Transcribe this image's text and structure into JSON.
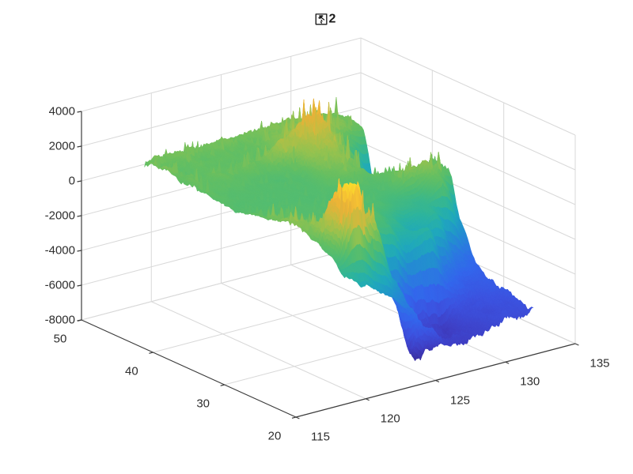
{
  "window": {
    "background": "#ffffff"
  },
  "chart_data": {
    "type": "surface",
    "title": "图2",
    "title_number": "2",
    "x_axis": {
      "ticks": [
        115,
        120,
        125,
        130,
        135
      ],
      "range": [
        115,
        135
      ]
    },
    "y_axis": {
      "ticks": [
        20,
        30,
        40,
        50
      ],
      "range": [
        20,
        50
      ]
    },
    "z_axis": {
      "ticks": [
        -8000,
        -6000,
        -4000,
        -2000,
        0,
        2000,
        4000
      ],
      "range": [
        -8000,
        4000
      ]
    },
    "view": {
      "azimuth": -37.5,
      "elevation": 30
    },
    "grid_visible": true,
    "surface_extent": {
      "x": [
        119,
        132.5
      ],
      "y": [
        21,
        49
      ]
    },
    "grid_x": [
      119,
      120.5,
      122,
      123.5,
      125,
      126.5,
      128,
      129.5,
      131,
      132.5
    ],
    "grid_y": [
      49,
      47,
      45,
      43,
      41,
      39,
      37,
      35,
      33,
      31,
      29,
      27,
      25,
      23,
      21
    ],
    "z_grid": [
      [
        700,
        550,
        400,
        350,
        400,
        500,
        650,
        800,
        750,
        600
      ],
      [
        450,
        300,
        200,
        180,
        250,
        350,
        500,
        700,
        600,
        400
      ],
      [
        350,
        250,
        150,
        120,
        200,
        450,
        700,
        850,
        500,
        300
      ],
      [
        500,
        300,
        200,
        300,
        600,
        1200,
        1900,
        900,
        -800,
        -2800
      ],
      [
        300,
        150,
        50,
        -20,
        200,
        800,
        1400,
        300,
        -2600,
        -3400
      ],
      [
        100,
        -15,
        -30,
        -25,
        50,
        600,
        1000,
        -800,
        -2900,
        -3300
      ],
      [
        50,
        -25,
        -50,
        -60,
        -40,
        300,
        700,
        -1200,
        -2300,
        -2700
      ],
      [
        80,
        -30,
        -60,
        -75,
        -85,
        -70,
        150,
        250,
        -900,
        300
      ],
      [
        250,
        60,
        -40,
        -70,
        -90,
        -110,
        -140,
        400,
        900,
        500
      ],
      [
        400,
        150,
        -30,
        -60,
        -90,
        -130,
        -600,
        -900,
        300,
        -2600
      ],
      [
        700,
        300,
        -50,
        -80,
        -120,
        -700,
        -1900,
        -1000,
        -3800,
        -4400
      ],
      [
        900,
        400,
        100,
        -60,
        -500,
        -1800,
        -1100,
        -4600,
        -5300,
        -5200
      ],
      [
        500,
        2000,
        300,
        -2200,
        -5000,
        -6300,
        -6500,
        -6000,
        -5600,
        -5300
      ],
      [
        -80,
        3300,
        1200,
        -2500,
        -7500,
        -7000,
        -6300,
        -6000,
        -5700,
        -5400
      ],
      [
        -900,
        -1800,
        -2600,
        -3600,
        -5200,
        -6200,
        -6400,
        -6000,
        -5800,
        -5500
      ]
    ],
    "colormap": [
      [
        0.0,
        "#3a2d9c"
      ],
      [
        0.08,
        "#3f3fc4"
      ],
      [
        0.17,
        "#3c53e0"
      ],
      [
        0.26,
        "#3366ec"
      ],
      [
        0.34,
        "#2b7ae0"
      ],
      [
        0.42,
        "#2292cd"
      ],
      [
        0.5,
        "#20a9bb"
      ],
      [
        0.57,
        "#2db49e"
      ],
      [
        0.64,
        "#49bb79"
      ],
      [
        0.7,
        "#65bf62"
      ],
      [
        0.76,
        "#96c24f"
      ],
      [
        0.82,
        "#c3bd41"
      ],
      [
        0.88,
        "#e9b138"
      ],
      [
        0.94,
        "#f6c233"
      ],
      [
        1.0,
        "#fbdc2b"
      ]
    ],
    "colors": {
      "axis": "#3c3c3c",
      "grid": "#d9d9d9",
      "text": "#2e2e2e",
      "background": "#ffffff"
    }
  }
}
